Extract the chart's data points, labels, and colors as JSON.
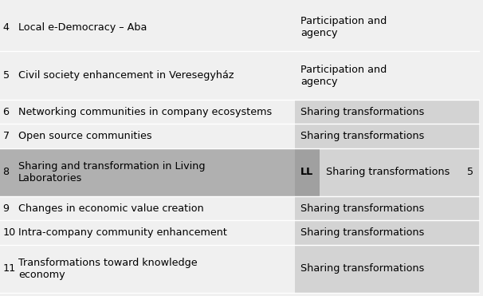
{
  "rows": [
    {
      "num": "4",
      "case": "Local e-Democracy – Aba",
      "type_label": "Participation and\nagency",
      "bg_left": "#f0f0f0",
      "bg_right": "#f0f0f0"
    },
    {
      "num": "5",
      "case": "Civil society enhancement in Veresegyház",
      "type_label": "Participation and\nagency",
      "bg_left": "#f0f0f0",
      "bg_right": "#f0f0f0"
    },
    {
      "num": "6",
      "case": "Networking communities in company ecosystems",
      "type_label": "Sharing transformations",
      "bg_left": "#f0f0f0",
      "bg_right": "#d3d3d3"
    },
    {
      "num": "7",
      "case": "Open source communities",
      "type_label": "Sharing transformations",
      "bg_left": "#f0f0f0",
      "bg_right": "#d3d3d3"
    },
    {
      "num": "8",
      "case": "Sharing and transformation in Living\nLaboratories",
      "type_label": "Sharing transformations",
      "bg_left": "#b0b0b0",
      "bg_right": "#d3d3d3",
      "ll_label": "LL",
      "cluster_num": "5"
    },
    {
      "num": "9",
      "case": "Changes in economic value creation",
      "type_label": "Sharing transformations",
      "bg_left": "#f0f0f0",
      "bg_right": "#d3d3d3"
    },
    {
      "num": "10",
      "case": "Intra-company community enhancement",
      "type_label": "Sharing transformations",
      "bg_left": "#f0f0f0",
      "bg_right": "#d3d3d3"
    },
    {
      "num": "11",
      "case": "Transformations toward knowledge\neconomy",
      "type_label": "Sharing transformations",
      "bg_left": "#f0f0f0",
      "bg_right": "#d3d3d3"
    }
  ],
  "col_split": 0.615,
  "ll_col": 0.668,
  "figsize": [
    6.06,
    3.71
  ],
  "dpi": 100,
  "bg_color": "#f0f0f0",
  "dark_bg": "#a0a0a0",
  "right_bg": "#d3d3d3",
  "font_size": 9.2,
  "font_family": "DejaVu Sans"
}
